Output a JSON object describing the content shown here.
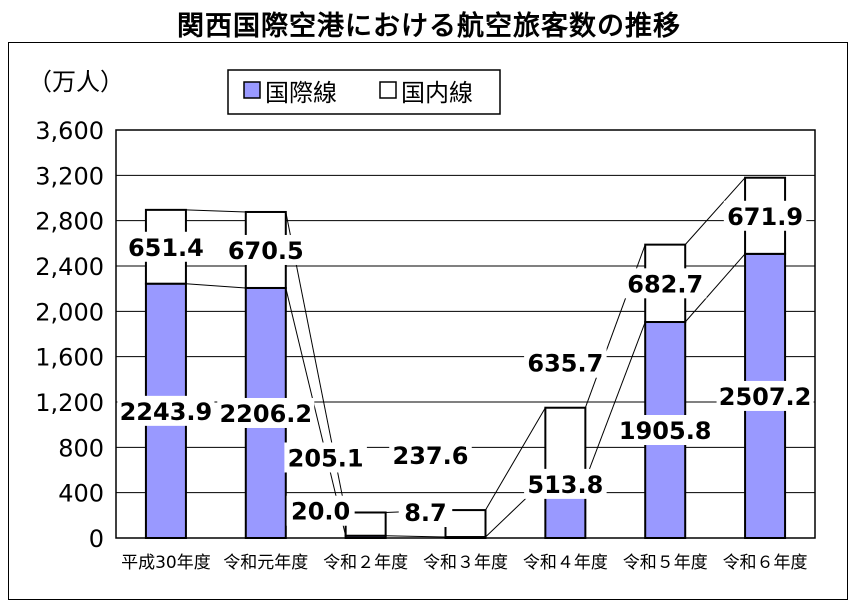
{
  "chart_data": {
    "type": "bar",
    "stacked": true,
    "title": "関西国際空港における航空旅客数の推移",
    "unit_label": "（万人）",
    "categories": [
      "平成30年度",
      "令和元年度",
      "令和２年度",
      "令和３年度",
      "令和４年度",
      "令和５年度",
      "令和６年度"
    ],
    "series": [
      {
        "name": "国際線",
        "color": "#9999FF",
        "values": [
          2243.9,
          2206.2,
          20.0,
          8.7,
          513.8,
          1905.8,
          2507.2
        ],
        "labels": [
          "2243.9",
          "2206.2",
          "20.0",
          "8.7",
          "513.8",
          "1905.8",
          "2507.2"
        ]
      },
      {
        "name": "国内線",
        "color": "#FFFFFF",
        "values": [
          651.4,
          670.5,
          205.1,
          237.6,
          635.7,
          682.7,
          671.9
        ],
        "labels": [
          "651.4",
          "670.5",
          "205.1",
          "237.6",
          "635.7",
          "682.7",
          "671.9"
        ]
      }
    ],
    "yticks": [
      "0",
      "400",
      "800",
      "1,200",
      "1,600",
      "2,000",
      "2,400",
      "2,800",
      "3,200",
      "3,600"
    ],
    "ylim": [
      0,
      3600
    ],
    "ytick_step": 400,
    "grid": true,
    "legend_position": "top"
  }
}
